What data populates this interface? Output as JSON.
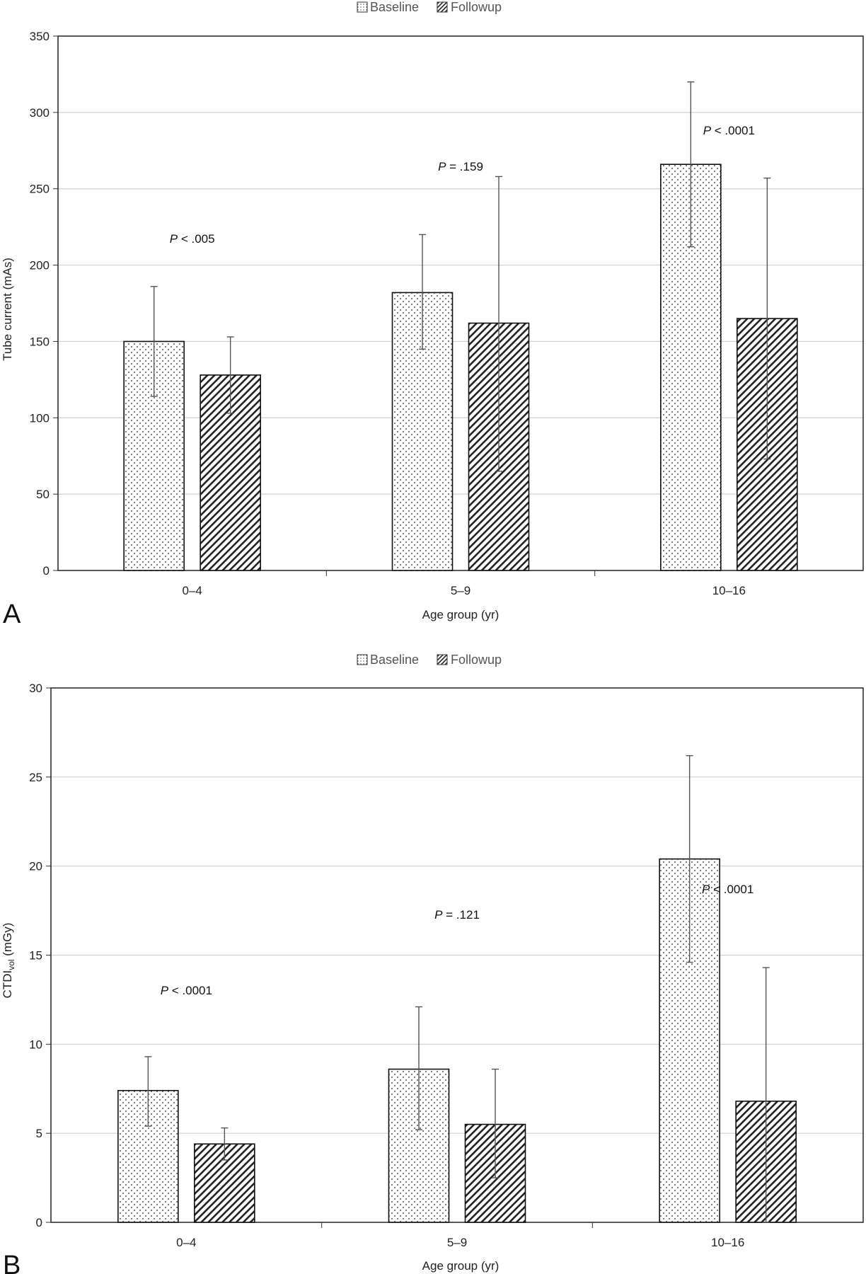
{
  "panels": [
    {
      "panel_label": "A",
      "legend": {
        "baseline_label": "Baseline",
        "followup_label": "Followup"
      },
      "annotation_prefix": "P",
      "chart_data": {
        "type": "bar",
        "categories": [
          "0–4",
          "5–9",
          "10–16"
        ],
        "series": [
          {
            "name": "Baseline",
            "pattern": "dots",
            "values": [
              150,
              182,
              266
            ],
            "err_low": [
              114,
              145,
              212
            ],
            "err_high": [
              186,
              220,
              320
            ]
          },
          {
            "name": "Followup",
            "pattern": "hatch",
            "values": [
              128,
              162,
              165
            ],
            "err_low": [
              103,
              65,
              73
            ],
            "err_high": [
              153,
              258,
              257
            ]
          }
        ],
        "annotations": [
          " < .005",
          " = .159",
          " < .0001"
        ],
        "xlabel": "Age group (yr)",
        "ylabel": "Tube current (mAs)",
        "ylabel_sub": "",
        "ylabel_tail": "",
        "ylim": [
          0,
          350
        ],
        "yticks": [
          0,
          50,
          100,
          150,
          200,
          250,
          300,
          350
        ],
        "grid": true,
        "legend_position": "top-center"
      }
    },
    {
      "panel_label": "B",
      "legend": {
        "baseline_label": "Baseline",
        "followup_label": "Followup"
      },
      "annotation_prefix": "P",
      "chart_data": {
        "type": "bar",
        "categories": [
          "0–4",
          "5–9",
          "10–16"
        ],
        "series": [
          {
            "name": "Baseline",
            "pattern": "dots",
            "values": [
              7.4,
              8.6,
              20.4
            ],
            "err_low": [
              5.4,
              5.2,
              14.6
            ],
            "err_high": [
              9.3,
              12.1,
              26.2
            ]
          },
          {
            "name": "Followup",
            "pattern": "hatch",
            "values": [
              4.4,
              5.5,
              6.8
            ],
            "err_low": [
              3.5,
              2.5,
              0.0
            ],
            "err_high": [
              5.3,
              8.6,
              14.3
            ]
          }
        ],
        "annotations": [
          " < .0001",
          " = .121",
          " < .0001"
        ],
        "xlabel": "Age group (yr)",
        "ylabel": "CTDI",
        "ylabel_sub": "vol",
        "ylabel_tail": " (mGy)",
        "ylim": [
          0,
          30
        ],
        "yticks": [
          0,
          5,
          10,
          15,
          20,
          25,
          30
        ],
        "grid": true,
        "legend_position": "top-center"
      }
    }
  ]
}
